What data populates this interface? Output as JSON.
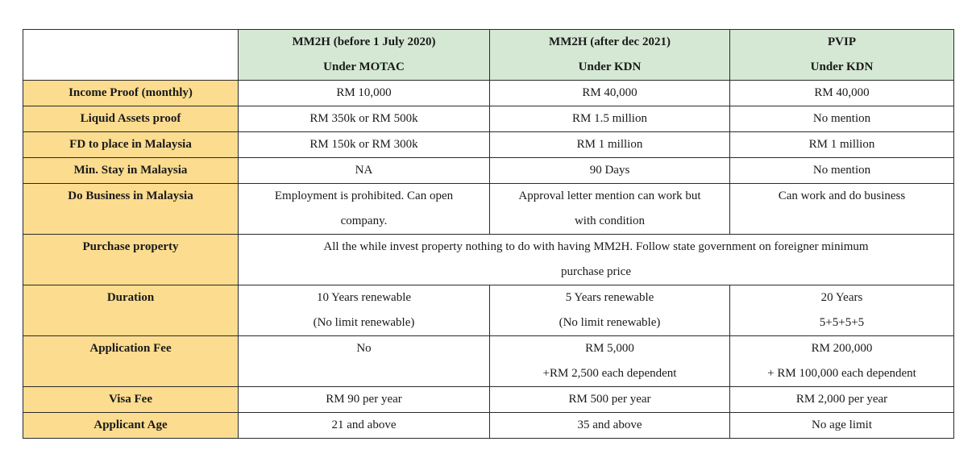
{
  "headers": [
    {
      "line1": "MM2H (before 1 July 2020)",
      "line2": "Under MOTAC"
    },
    {
      "line1": "MM2H (after dec 2021)",
      "line2": "Under KDN"
    },
    {
      "line1": "PVIP",
      "line2": "Under KDN"
    }
  ],
  "rows": {
    "income": {
      "label": "Income Proof (monthly)",
      "cells": [
        "RM 10,000",
        "RM 40,000",
        "RM 40,000"
      ]
    },
    "liquid": {
      "label": "Liquid Assets proof",
      "cells": [
        "RM 350k or RM 500k",
        "RM 1.5 million",
        "No mention"
      ]
    },
    "fd": {
      "label": "FD to place in Malaysia",
      "cells": [
        "RM 150k or RM 300k",
        "RM 1 million",
        "RM 1 million"
      ]
    },
    "stay": {
      "label": "Min. Stay in Malaysia",
      "cells": [
        "NA",
        "90 Days",
        "No mention"
      ]
    },
    "business": {
      "label": "Do Business in Malaysia",
      "cells": [
        {
          "line1": "Employment is prohibited. Can open",
          "line2": "company."
        },
        {
          "line1": "Approval letter mention can work but",
          "line2": "with condition"
        },
        {
          "line1": "Can work and do business",
          "line2": ""
        }
      ]
    },
    "property": {
      "label": "Purchase property",
      "line1": "All the while invest property nothing to do with having MM2H. Follow state government on foreigner minimum",
      "line2": "purchase price"
    },
    "duration": {
      "label": "Duration",
      "cells": [
        {
          "line1": "10 Years renewable",
          "line2": "(No limit renewable)"
        },
        {
          "line1": "5 Years renewable",
          "line2": "(No limit renewable)"
        },
        {
          "line1": "20 Years",
          "line2": "5+5+5+5"
        }
      ]
    },
    "appfee": {
      "label": "Application Fee",
      "cells": [
        {
          "line1": "No",
          "line2": ""
        },
        {
          "line1": "RM 5,000",
          "line2": "+RM 2,500 each dependent"
        },
        {
          "line1": "RM 200,000",
          "line2": "+ RM 100,000 each dependent"
        }
      ]
    },
    "visa": {
      "label": "Visa Fee",
      "cells": [
        "RM 90 per year",
        "RM 500 per year",
        "RM 2,000 per year"
      ]
    },
    "age": {
      "label": "Applicant Age",
      "cells": [
        "21 and above",
        "35 and above",
        "No age limit"
      ]
    }
  },
  "colors": {
    "header_bg": "#d5e8d4",
    "label_bg": "#fcdc8f",
    "border": "#2a2a2a"
  }
}
